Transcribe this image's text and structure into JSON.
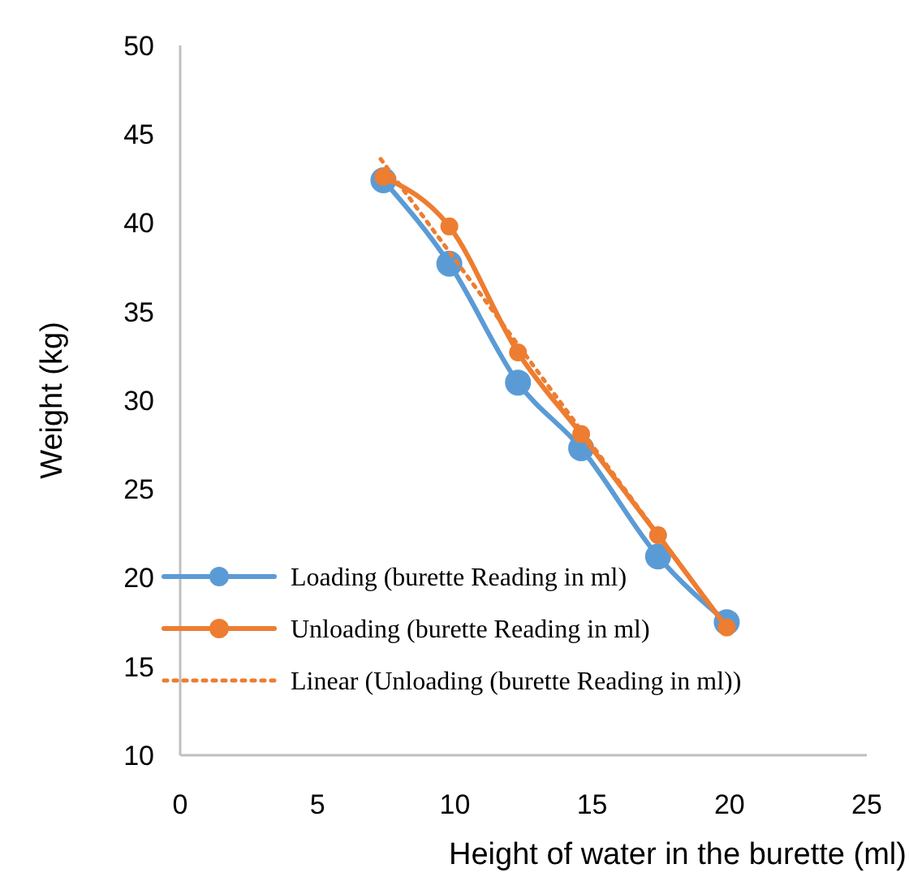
{
  "chart_data": {
    "type": "line",
    "xlabel": "Height of water in the burette (ml)",
    "ylabel": "Weight (kg)",
    "xlim": [
      0,
      25
    ],
    "xticks": [
      0,
      5,
      10,
      15,
      20,
      25
    ],
    "ylim": [
      10,
      50
    ],
    "yticks": [
      10,
      15,
      20,
      25,
      30,
      35,
      40,
      45,
      50
    ],
    "grid": false,
    "legend": "bottom left",
    "marker": "circle",
    "line_style": "solid",
    "series": [
      {
        "name": "Loading (burette Reading in ml)",
        "color": "#5b9bd5",
        "x": [
          7.4,
          9.8,
          12.3,
          14.6,
          17.4,
          19.9
        ],
        "values": [
          42.4,
          37.7,
          31.0,
          27.3,
          21.2,
          17.5
        ]
      },
      {
        "name": "Unloading (burette Reading in ml)",
        "color": "#ed7d31",
        "x": [
          7.4,
          9.8,
          12.3,
          14.6,
          17.4,
          19.9
        ],
        "values": [
          42.6,
          39.8,
          32.7,
          28.1,
          22.4,
          17.2
        ]
      },
      {
        "name": "Linear (Unloading (burette Reading in ml))",
        "color": "#ed7d31",
        "x": [
          7.3,
          19.9
        ],
        "values": [
          43.6,
          17.2
        ],
        "marker": "none",
        "line_style": "dotted"
      }
    ]
  }
}
